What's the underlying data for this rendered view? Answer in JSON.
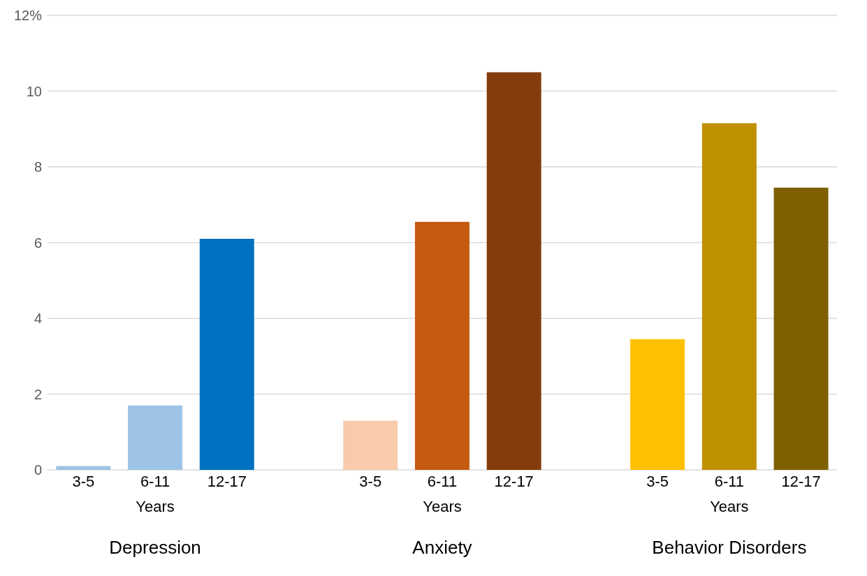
{
  "chart_data": {
    "type": "bar",
    "categories": [
      "3-5",
      "6-11",
      "12-17",
      null,
      "3-5",
      "6-11",
      "12-17",
      null,
      "3-5",
      "6-11",
      "12-17"
    ],
    "values": [
      0.1,
      1.7,
      6.1,
      null,
      1.3,
      6.55,
      10.5,
      null,
      3.45,
      9.15,
      7.45
    ],
    "colors": [
      "#9dc3e6",
      "#9dc3e6",
      "#0070c0",
      null,
      "#f8cbad",
      "#c55a11",
      "#843c0c",
      null,
      "#ffc000",
      "#bf9000",
      "#7f6000"
    ],
    "ylim": [
      0,
      12
    ],
    "yticks": [
      0,
      2,
      4,
      6,
      8,
      10,
      {
        "value": 12,
        "label": "12%"
      }
    ],
    "grid": "y",
    "annotations": [
      "Years",
      "Years",
      "Years",
      "Depression",
      "Anxiety",
      "Behavior Disorders"
    ]
  }
}
